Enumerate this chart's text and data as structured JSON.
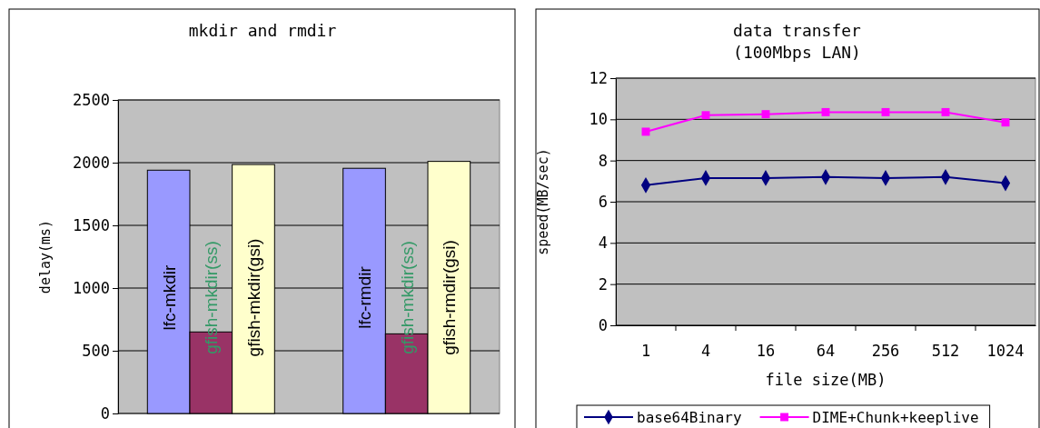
{
  "chart_data": [
    {
      "type": "bar",
      "title": "mkdir and rmdir",
      "ylabel": "delay(ms)",
      "categories": [
        null,
        null
      ],
      "series": [
        {
          "color": "#9999ff",
          "values": [
            1940,
            1955
          ]
        },
        {
          "color": "#993366",
          "values": [
            650,
            635
          ]
        },
        {
          "color": "#ffffcc",
          "values": [
            1985,
            2010
          ]
        }
      ],
      "annotations": [
        "lfc-mkdir",
        "gfish-mkdir(ss)",
        "gfish-mkdir(gsi)",
        "lfc-rmdir",
        "gfish-mkdir(ss)",
        "gfish-rmdir(gsi)"
      ],
      "ylim": [
        0,
        2500
      ],
      "yticks": [
        0,
        500,
        1000,
        1500,
        2000,
        2500
      ],
      "grid": "y",
      "legend": false
    },
    {
      "type": "line",
      "title": "data transfer\n(100Mbps LAN)",
      "xlabel": "file size(MB)",
      "ylabel": "speed(MB/sec)",
      "categories": [
        "1",
        "4",
        "16",
        "64",
        "256",
        "512",
        "1024"
      ],
      "series": [
        {
          "name": "base64Binary",
          "color": "#000080",
          "marker": "diamond",
          "values": [
            6.8,
            7.15,
            7.15,
            7.2,
            7.15,
            7.2,
            6.9
          ]
        },
        {
          "name": "DIME+Chunk+keeplive",
          "color": "#ff00ff",
          "marker": "square",
          "values": [
            9.4,
            10.2,
            10.25,
            10.35,
            10.35,
            10.35,
            9.85
          ]
        }
      ],
      "ylim": [
        0,
        12
      ],
      "yticks": [
        0,
        2,
        4,
        6,
        8,
        10,
        12
      ],
      "grid": "y",
      "legend": "bottom"
    }
  ]
}
